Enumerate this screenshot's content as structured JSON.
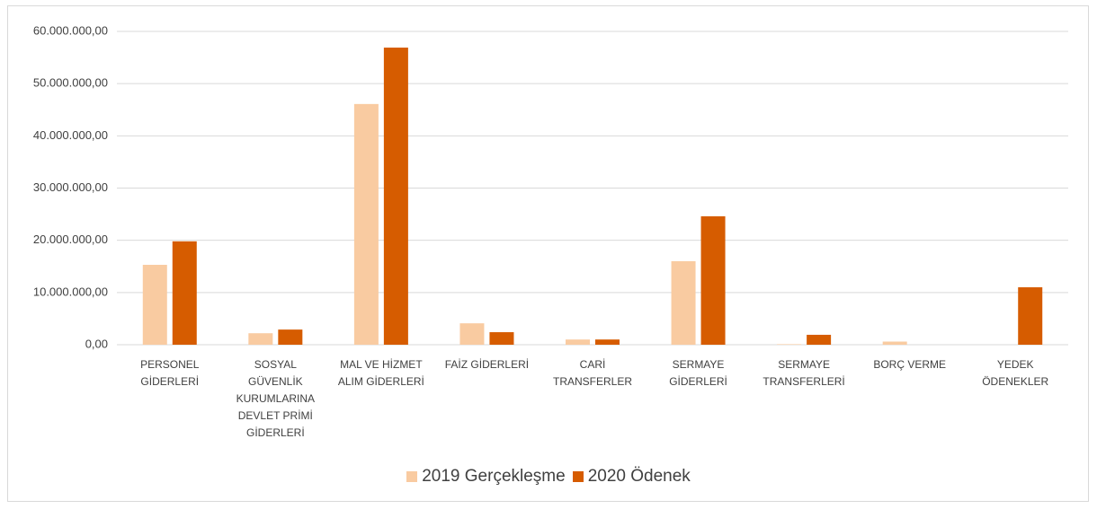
{
  "chart_data": {
    "type": "bar",
    "categories": [
      "PERSONEL GİDERLERİ",
      "SOSYAL GÜVENLİK KURUMLARINA DEVLET PRİMİ GİDERLERİ",
      "MAL VE HİZMET ALIM GİDERLERİ",
      "FAİZ GİDERLERİ",
      "CARİ TRANSFERLER",
      "SERMAYE GİDERLERİ",
      "SERMAYE TRANSFERLERİ",
      "BORÇ VERME",
      "YEDEK ÖDENEKLER"
    ],
    "series": [
      {
        "name": "2019 Gerçekleşme",
        "color": "#f9cba1",
        "values": [
          15300000,
          2200000,
          46100000,
          4100000,
          1000000,
          16000000,
          100000,
          600000,
          0
        ]
      },
      {
        "name": "2020 Ödenek",
        "color": "#d65c00",
        "values": [
          19800000,
          2900000,
          56900000,
          2400000,
          1000000,
          24600000,
          1900000,
          0,
          11000000
        ]
      }
    ],
    "ylim": [
      0,
      60000000
    ],
    "yticks": [
      {
        "value": 0,
        "label": "0,00"
      },
      {
        "value": 10000000,
        "label": "10.000.000,00"
      },
      {
        "value": 20000000,
        "label": "20.000.000,00"
      },
      {
        "value": 30000000,
        "label": "30.000.000,00"
      },
      {
        "value": 40000000,
        "label": "40.000.000,00"
      },
      {
        "value": 50000000,
        "label": "50.000.000,00"
      },
      {
        "value": 60000000,
        "label": "60.000.000,00"
      }
    ],
    "grid": true,
    "legend": "bottom"
  }
}
